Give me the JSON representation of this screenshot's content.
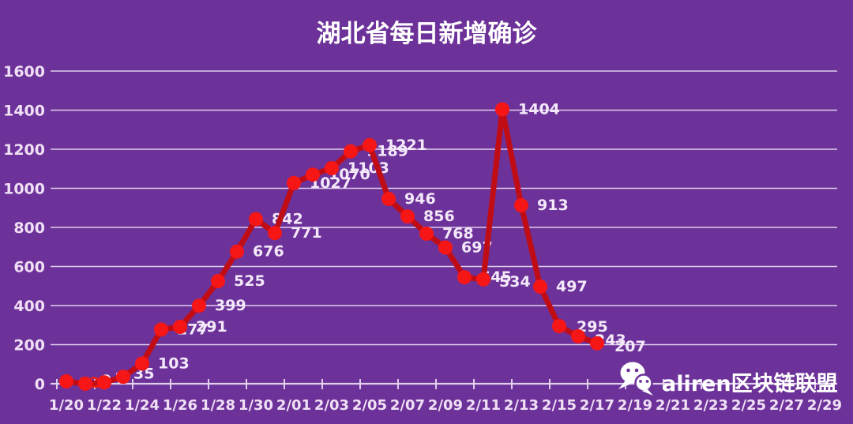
{
  "title": "湖北省每日新增确诊",
  "watermark": {
    "text": "aliren区块链联盟",
    "icon": "wechat-icon"
  },
  "colors": {
    "background": "#6d3299",
    "grid": "#e8dbf3",
    "line": "#c00d15",
    "marker": "#f71616",
    "data_label": "#f3e9fa",
    "first_label_red": "#ed2015",
    "axis_text": "#f0e0f5",
    "title": "#ffffff",
    "watermark": "#ffffff"
  },
  "chart_data": {
    "type": "line",
    "title": "湖北省每日新增确诊",
    "grid": "horizontal",
    "legend": false,
    "data_labels": true,
    "x_axis": {
      "tick_labels": [
        "1/20",
        "1/22",
        "1/24",
        "1/26",
        "1/28",
        "1/30",
        "2/01",
        "2/03",
        "2/05",
        "2/07",
        "2/09",
        "2/11",
        "2/13",
        "2/15",
        "2/17",
        "2/19",
        "2/21",
        "2/23",
        "2/25",
        "2/27",
        "2/29"
      ]
    },
    "y_axis": {
      "min": 0,
      "max": 1600,
      "step": 200,
      "tick_labels": [
        "0",
        "200",
        "400",
        "600",
        "800",
        "1000",
        "1200",
        "1400",
        "1600"
      ]
    },
    "series": [
      {
        "name": "每日新增确诊",
        "x": [
          "1/20",
          "1/21",
          "1/22",
          "1/23",
          "1/24",
          "1/25",
          "1/26",
          "1/27",
          "1/28",
          "1/29",
          "1/30",
          "1/31",
          "2/01",
          "2/02",
          "2/03",
          "2/04",
          "2/05",
          "2/06",
          "2/07",
          "2/08",
          "2/09",
          "2/10",
          "2/11",
          "2/12",
          "2/13",
          "2/14",
          "2/15",
          "2/16",
          "2/17"
        ],
        "values": [
          12,
          0,
          7,
          35,
          103,
          277,
          291,
          399,
          525,
          676,
          842,
          771,
          1027,
          1070,
          1103,
          1189,
          1221,
          946,
          856,
          768,
          697,
          545,
          534,
          1404,
          913,
          497,
          295,
          243,
          207
        ]
      }
    ]
  }
}
